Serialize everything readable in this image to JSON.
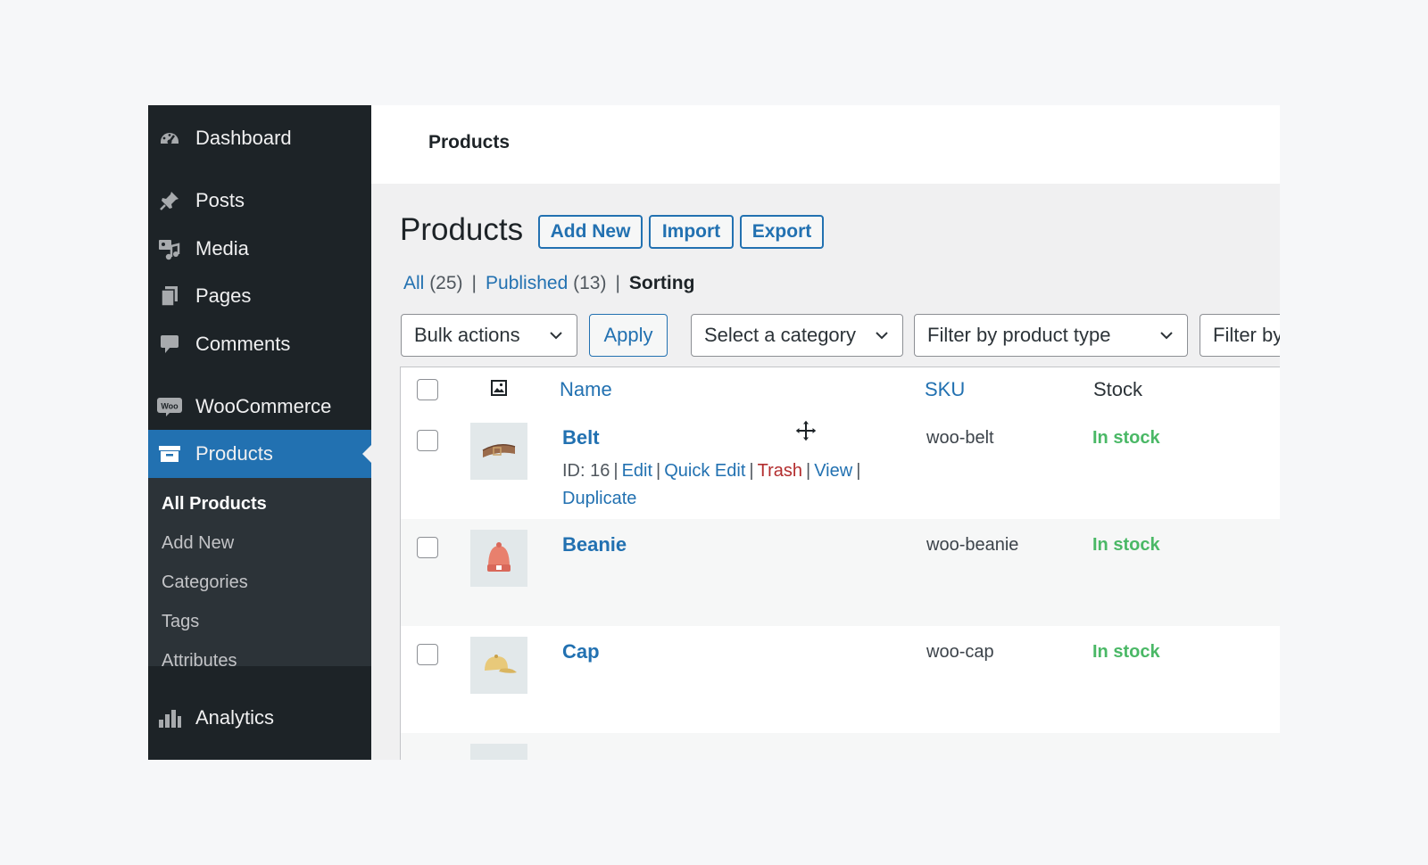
{
  "sidebar": {
    "items": [
      {
        "label": "Dashboard",
        "icon": "dashboard-icon"
      },
      {
        "label": "Posts",
        "icon": "pin-icon"
      },
      {
        "label": "Media",
        "icon": "media-icon"
      },
      {
        "label": "Pages",
        "icon": "pages-icon"
      },
      {
        "label": "Comments",
        "icon": "comment-icon"
      },
      {
        "label": "WooCommerce",
        "icon": "woo-icon",
        "icon_text": "Woo"
      },
      {
        "label": "Products",
        "icon": "archive-icon",
        "active": true
      },
      {
        "label": "Analytics",
        "icon": "bar-chart-icon"
      }
    ],
    "submenu": [
      "All Products",
      "Add New",
      "Categories",
      "Tags",
      "Attributes"
    ]
  },
  "topbar": {
    "title": "Products"
  },
  "main": {
    "title": "Products",
    "actions": [
      "Add New",
      "Import",
      "Export"
    ],
    "views": {
      "all_label": "All",
      "all_count": "(25)",
      "published_label": "Published",
      "published_count": "(13)",
      "sorting_label": "Sorting",
      "separator": "|"
    },
    "filters": {
      "bulk_actions": "Bulk actions",
      "apply": "Apply",
      "category": "Select a category",
      "product_type": "Filter by product type",
      "stock": "Filter by"
    },
    "table": {
      "columns": {
        "name": "Name",
        "sku": "SKU",
        "stock": "Stock"
      },
      "rows": [
        {
          "name": "Belt",
          "sku": "woo-belt",
          "stock": "In stock",
          "row_actions": {
            "id": "ID: 16",
            "edit": "Edit",
            "quick_edit": "Quick Edit",
            "trash": "Trash",
            "view": "View",
            "duplicate": "Duplicate"
          }
        },
        {
          "name": "Beanie",
          "sku": "woo-beanie",
          "stock": "In stock"
        },
        {
          "name": "Cap",
          "sku": "woo-cap",
          "stock": "In stock"
        }
      ]
    }
  },
  "colors": {
    "accent": "#2271b1",
    "sidebar_bg": "#1d2327",
    "in_stock": "#4ab866",
    "trash": "#b32d2e"
  }
}
